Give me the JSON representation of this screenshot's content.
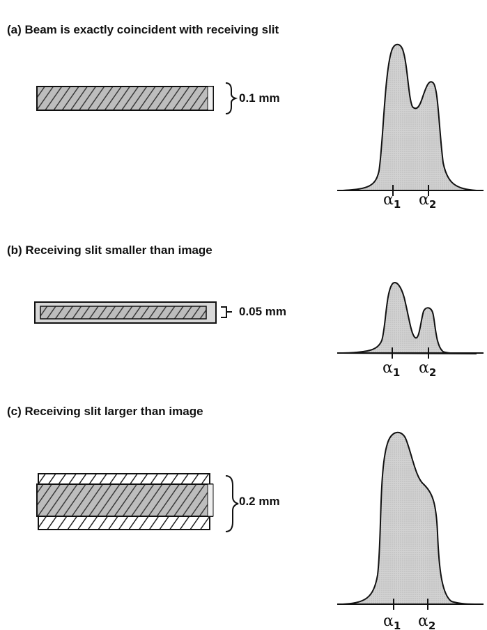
{
  "panels": [
    {
      "id": "a",
      "title": "(a) Beam is exactly coincident with receiving slit",
      "dimension": "0.1 mm",
      "peak_labels": [
        {
          "symbol": "α",
          "sub": "1"
        },
        {
          "symbol": "α",
          "sub": "2"
        }
      ]
    },
    {
      "id": "b",
      "title": "(b) Receiving slit smaller than image",
      "dimension": "0.05 mm",
      "peak_labels": [
        {
          "symbol": "α",
          "sub": "1"
        },
        {
          "symbol": "α",
          "sub": "2"
        }
      ]
    },
    {
      "id": "c",
      "title": "(c) Receiving slit larger than image",
      "dimension": "0.2 mm",
      "peak_labels": [
        {
          "symbol": "α",
          "sub": "1"
        },
        {
          "symbol": "α",
          "sub": "2"
        }
      ]
    }
  ],
  "colors": {
    "fill": "#cfcfcf",
    "hatch": "#333333",
    "line": "#111111"
  }
}
